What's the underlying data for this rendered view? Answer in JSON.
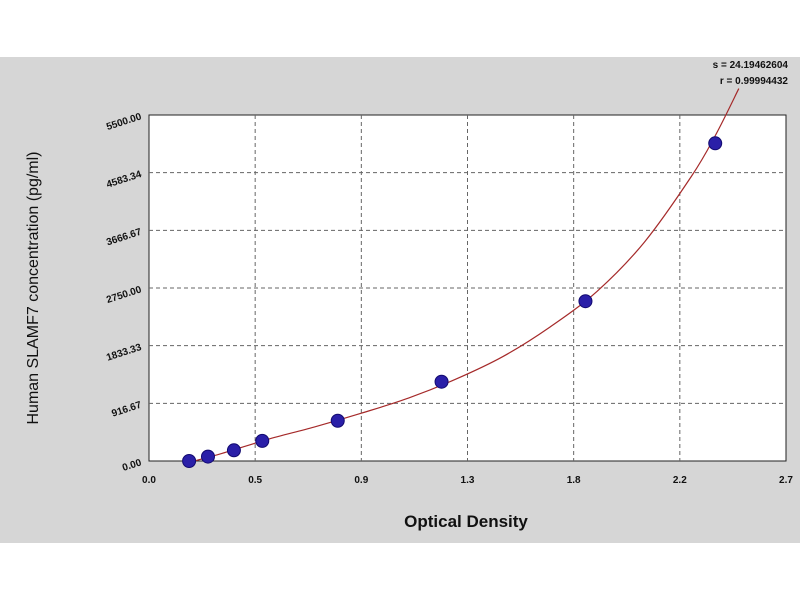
{
  "stats": {
    "s_line": "s = 24.19462604",
    "r_line": "r = 0.99994432"
  },
  "chart_data": {
    "type": "scatter",
    "xlabel": "Optical Density",
    "ylabel": "Human SLAMF7 concentration (pg/ml)",
    "xlim": [
      0.0,
      2.7
    ],
    "ylim": [
      0.0,
      5500.0
    ],
    "x_ticks": [
      "0.0",
      "0.5",
      "0.9",
      "1.3",
      "1.8",
      "2.2",
      "2.7"
    ],
    "x_tick_values": [
      0.0,
      0.45,
      0.9,
      1.35,
      1.8,
      2.25,
      2.7
    ],
    "y_ticks": [
      "0.00",
      "916.67",
      "1833.33",
      "2750.00",
      "3666.67",
      "4583.34",
      "5500.00"
    ],
    "y_tick_values": [
      0.0,
      916.67,
      1833.33,
      2750.0,
      3666.67,
      4583.34,
      5500.0
    ],
    "grid": true,
    "series": [
      {
        "type": "scatter",
        "x": [
          0.17,
          0.25,
          0.36,
          0.48,
          0.8,
          1.24,
          1.85,
          2.4
        ],
        "y": [
          0,
          70,
          170,
          320,
          640,
          1260,
          2540,
          5050
        ],
        "color": "#2a1fa8"
      },
      {
        "type": "line",
        "x": [
          0.1,
          0.3,
          0.5,
          0.7,
          0.9,
          1.1,
          1.3,
          1.5,
          1.7,
          1.9,
          2.1,
          2.3,
          2.4,
          2.5
        ],
        "y": [
          -90,
          110,
          340,
          540,
          760,
          1000,
          1300,
          1660,
          2130,
          2700,
          3480,
          4530,
          5170,
          5920
        ],
        "color": "#a52a2a"
      }
    ]
  }
}
